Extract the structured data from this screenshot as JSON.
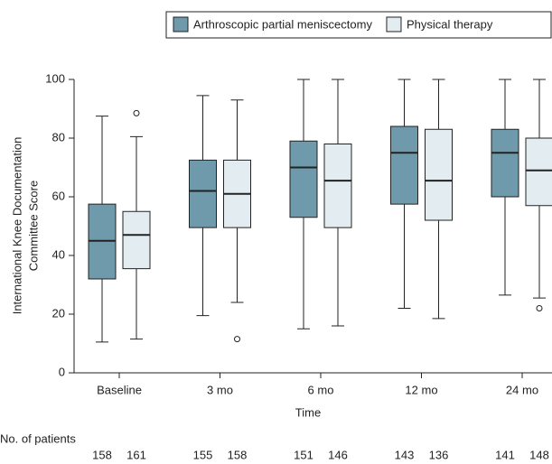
{
  "chart_data": {
    "type": "box",
    "x_label": "Time",
    "y_label": [
      "International Knee Documentation",
      "Committee Score"
    ],
    "categories": [
      "Baseline",
      "3 mo",
      "6 mo",
      "12 mo",
      "24 mo"
    ],
    "ylim": [
      0,
      100
    ],
    "yticks": [
      0,
      20,
      40,
      60,
      80,
      100
    ],
    "legend": "top-right",
    "series": [
      {
        "name": "Arthroscopic partial meniscectomy",
        "color": "#6f9aab",
        "low": [
          10.5,
          19.5,
          15,
          22,
          26.5
        ],
        "q1": [
          32,
          49.5,
          53,
          57.5,
          60
        ],
        "median": [
          45,
          62,
          70,
          75,
          75
        ],
        "q3": [
          57.5,
          72.5,
          79,
          84,
          83
        ],
        "high": [
          87.5,
          94.5,
          100,
          100,
          100
        ],
        "outliers": [
          [],
          [],
          [],
          [],
          []
        ]
      },
      {
        "name": "Physical therapy",
        "color": "#e3ecf0",
        "low": [
          11.5,
          24,
          16,
          18.5,
          25.5
        ],
        "q1": [
          35.5,
          49.5,
          49.5,
          52,
          57
        ],
        "median": [
          47,
          61,
          65.5,
          65.5,
          69
        ],
        "q3": [
          55,
          72.5,
          78,
          83,
          80
        ],
        "high": [
          80.5,
          93,
          100,
          100,
          100
        ],
        "outliers": [
          [
            88.5
          ],
          [
            11.5
          ],
          [],
          [],
          [
            22
          ]
        ]
      }
    ],
    "patients": {
      "label": "No. of patients",
      "counts": [
        [
          158,
          155,
          151,
          143,
          141
        ],
        [
          161,
          158,
          146,
          136,
          148
        ]
      ]
    }
  }
}
